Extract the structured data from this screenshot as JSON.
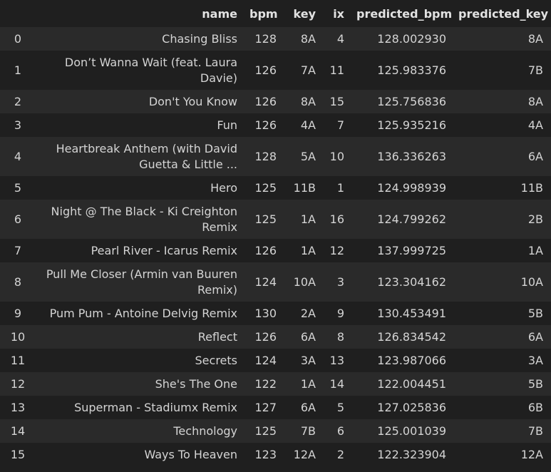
{
  "columns": {
    "index": "",
    "name": "name",
    "bpm": "bpm",
    "key": "key",
    "ix": "ix",
    "predicted_bpm": "predicted_bpm",
    "predicted_key": "predicted_key"
  },
  "rows": [
    {
      "index": "0",
      "name": "Chasing Bliss",
      "bpm": "128",
      "key": "8A",
      "ix": "4",
      "predicted_bpm": "128.002930",
      "predicted_key": "8A"
    },
    {
      "index": "1",
      "name": "Don’t Wanna Wait (feat. Laura Davie)",
      "bpm": "126",
      "key": "7A",
      "ix": "11",
      "predicted_bpm": "125.983376",
      "predicted_key": "7B"
    },
    {
      "index": "2",
      "name": "Don't You Know",
      "bpm": "126",
      "key": "8A",
      "ix": "15",
      "predicted_bpm": "125.756836",
      "predicted_key": "8A"
    },
    {
      "index": "3",
      "name": "Fun",
      "bpm": "126",
      "key": "4A",
      "ix": "7",
      "predicted_bpm": "125.935216",
      "predicted_key": "4A"
    },
    {
      "index": "4",
      "name": "Heartbreak Anthem (with David Guetta & Little ...",
      "bpm": "128",
      "key": "5A",
      "ix": "10",
      "predicted_bpm": "136.336263",
      "predicted_key": "6A"
    },
    {
      "index": "5",
      "name": "Hero",
      "bpm": "125",
      "key": "11B",
      "ix": "1",
      "predicted_bpm": "124.998939",
      "predicted_key": "11B"
    },
    {
      "index": "6",
      "name": "Night @ The Black - Ki Creighton Remix",
      "bpm": "125",
      "key": "1A",
      "ix": "16",
      "predicted_bpm": "124.799262",
      "predicted_key": "2B"
    },
    {
      "index": "7",
      "name": "Pearl River - Icarus Remix",
      "bpm": "126",
      "key": "1A",
      "ix": "12",
      "predicted_bpm": "137.999725",
      "predicted_key": "1A"
    },
    {
      "index": "8",
      "name": "Pull Me Closer (Armin van Buuren Remix)",
      "bpm": "124",
      "key": "10A",
      "ix": "3",
      "predicted_bpm": "123.304162",
      "predicted_key": "10A"
    },
    {
      "index": "9",
      "name": "Pum Pum - Antoine Delvig Remix",
      "bpm": "130",
      "key": "2A",
      "ix": "9",
      "predicted_bpm": "130.453491",
      "predicted_key": "5B"
    },
    {
      "index": "10",
      "name": "Reflect",
      "bpm": "126",
      "key": "6A",
      "ix": "8",
      "predicted_bpm": "126.834542",
      "predicted_key": "6A"
    },
    {
      "index": "11",
      "name": "Secrets",
      "bpm": "124",
      "key": "3A",
      "ix": "13",
      "predicted_bpm": "123.987066",
      "predicted_key": "3A"
    },
    {
      "index": "12",
      "name": "She's The One",
      "bpm": "122",
      "key": "1A",
      "ix": "14",
      "predicted_bpm": "122.004451",
      "predicted_key": "5B"
    },
    {
      "index": "13",
      "name": "Superman - Stadiumx Remix",
      "bpm": "127",
      "key": "6A",
      "ix": "5",
      "predicted_bpm": "127.025836",
      "predicted_key": "6B"
    },
    {
      "index": "14",
      "name": "Technology",
      "bpm": "125",
      "key": "7B",
      "ix": "6",
      "predicted_bpm": "125.001039",
      "predicted_key": "7B"
    },
    {
      "index": "15",
      "name": "Ways To Heaven",
      "bpm": "123",
      "key": "12A",
      "ix": "2",
      "predicted_bpm": "122.323904",
      "predicted_key": "12A"
    }
  ],
  "colors": {
    "background": "#1f1f1f",
    "row_stripe": "#2a2a2a",
    "text": "#d4d4d4"
  }
}
